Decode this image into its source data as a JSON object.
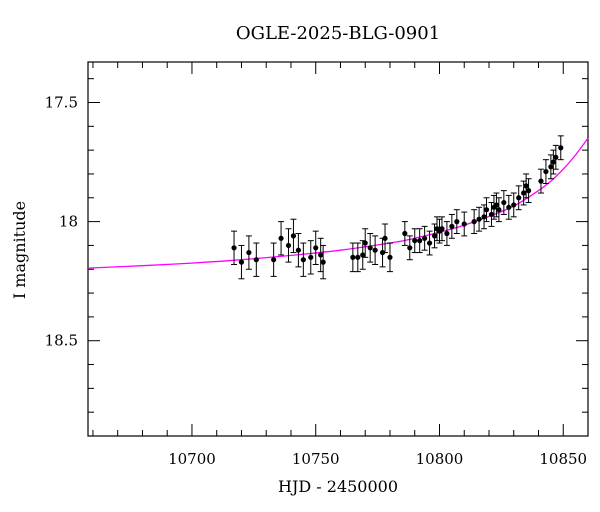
{
  "chart_data": {
    "type": "scatter",
    "title": "OGLE-2025-BLG-0901",
    "xlabel": "HJD - 2450000",
    "ylabel": "I magnitude",
    "xlim": [
      10658,
      10860
    ],
    "ylim": [
      18.9,
      17.33
    ],
    "y_inverted": true,
    "grid": false,
    "xticks": [
      10700,
      10750,
      10800,
      10850
    ],
    "xtick_labels": [
      "10700",
      "10750",
      "10800",
      "10850"
    ],
    "yticks": [
      17.5,
      18,
      18.5
    ],
    "ytick_labels": [
      "17.5",
      "18",
      "18.5"
    ],
    "colors": {
      "data": "#000000",
      "model": "#ff00ff"
    },
    "series": [
      {
        "kind": "observations",
        "x": [
          10717,
          10720,
          10723,
          10726,
          10733,
          10736,
          10739,
          10741,
          10743,
          10745,
          10748,
          10750,
          10752,
          10753,
          10765,
          10767,
          10769,
          10770,
          10772,
          10774,
          10777,
          10778,
          10780,
          10786,
          10788,
          10790,
          10792,
          10794,
          10796,
          10798,
          10799,
          10800,
          10801,
          10803,
          10805,
          10807,
          10810,
          10814,
          10816,
          10818,
          10819,
          10821,
          10822,
          10823,
          10824,
          10826,
          10828,
          10830,
          10832,
          10834,
          10835,
          10836,
          10841,
          10843,
          10845,
          10846,
          10847,
          10849
        ],
        "y": [
          18.11,
          18.17,
          18.13,
          18.16,
          18.16,
          18.07,
          18.1,
          18.06,
          18.12,
          18.16,
          18.15,
          18.11,
          18.14,
          18.17,
          18.15,
          18.15,
          18.14,
          18.09,
          18.11,
          18.12,
          18.13,
          18.07,
          18.15,
          18.05,
          18.11,
          18.08,
          18.08,
          18.07,
          18.09,
          18.06,
          18.03,
          18.04,
          18.03,
          18.05,
          18.02,
          18.0,
          18.01,
          18.0,
          17.99,
          17.98,
          17.95,
          17.97,
          17.94,
          17.93,
          17.95,
          17.92,
          17.94,
          17.93,
          17.9,
          17.88,
          17.85,
          17.87,
          17.83,
          17.79,
          17.77,
          17.75,
          17.73,
          17.69
        ],
        "yerr": [
          0.07,
          0.07,
          0.07,
          0.07,
          0.07,
          0.07,
          0.07,
          0.07,
          0.07,
          0.07,
          0.07,
          0.07,
          0.07,
          0.07,
          0.06,
          0.06,
          0.06,
          0.06,
          0.06,
          0.06,
          0.06,
          0.06,
          0.06,
          0.05,
          0.05,
          0.05,
          0.05,
          0.05,
          0.05,
          0.05,
          0.05,
          0.05,
          0.05,
          0.05,
          0.05,
          0.05,
          0.05,
          0.05,
          0.05,
          0.05,
          0.05,
          0.05,
          0.05,
          0.05,
          0.05,
          0.05,
          0.05,
          0.05,
          0.05,
          0.05,
          0.05,
          0.05,
          0.05,
          0.05,
          0.05,
          0.05,
          0.05,
          0.05
        ]
      },
      {
        "kind": "model",
        "x": [
          10658,
          10680,
          10700,
          10720,
          10740,
          10760,
          10780,
          10790,
          10800,
          10810,
          10820,
          10830,
          10840,
          10845,
          10850,
          10855,
          10860
        ],
        "y": [
          18.195,
          18.185,
          18.174,
          18.16,
          18.142,
          18.12,
          18.09,
          18.07,
          18.045,
          18.015,
          17.978,
          17.935,
          17.87,
          17.83,
          17.78,
          17.72,
          17.65
        ]
      }
    ]
  }
}
